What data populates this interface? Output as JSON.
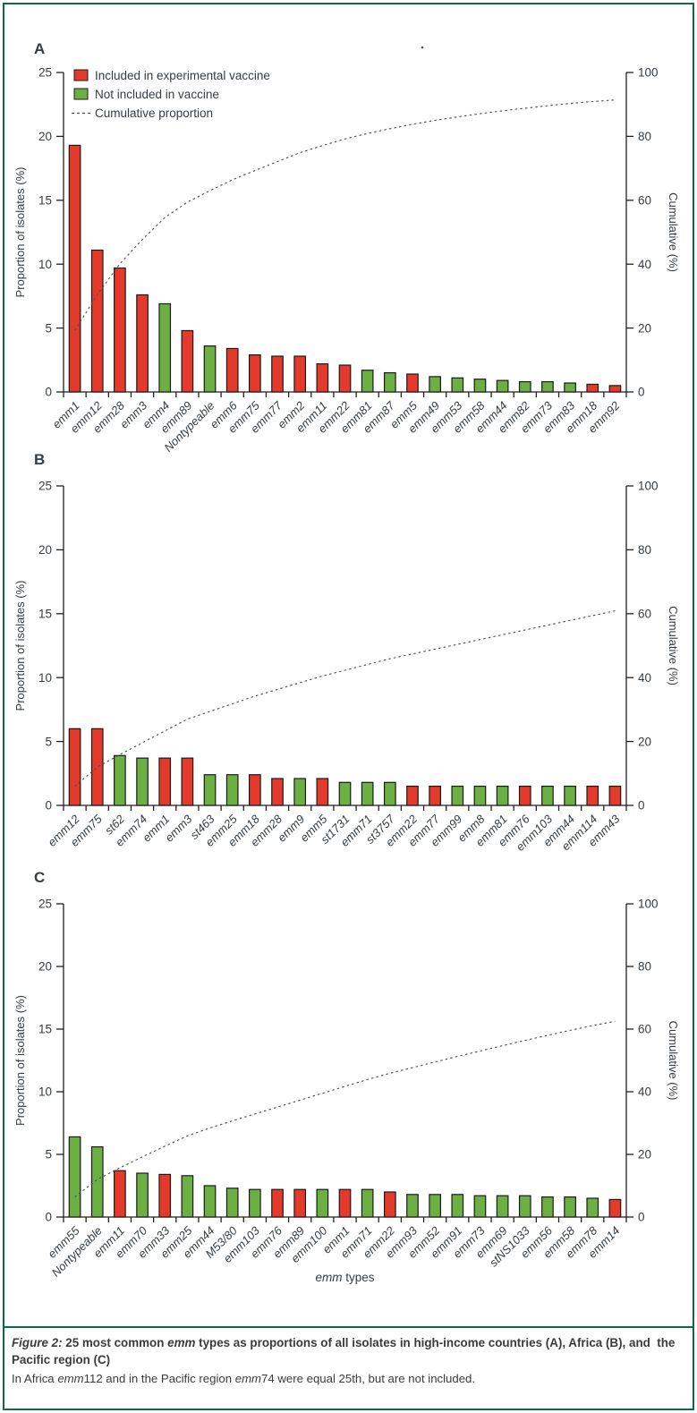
{
  "colors": {
    "included": "#e43a2c",
    "not_included": "#6cb044",
    "cumulative_line": "#4c4c4c",
    "bar_outline": "#1a1a1a",
    "axis": "#231f20",
    "frame_green": "#0c6b3f",
    "text": "#343d44"
  },
  "xlabel": {
    "italic_part": "emm",
    "rest_part": " types"
  },
  "legend": {
    "included_label": "Included in experimental vaccine",
    "not_included_label": "Not included in vaccine",
    "cumulative_label": "Cumulative proportion"
  },
  "caption": {
    "title_segments": [
      {
        "text": "Figure 2: ",
        "style": "bold-italic"
      },
      {
        "text": "25 most common ",
        "style": "bold"
      },
      {
        "text": "emm",
        "style": "bold-italic"
      },
      {
        "text": " types as proportions of all isolates in high-income countries (A), Africa (B), and  the Pacific region (C)",
        "style": "bold"
      }
    ],
    "note_segments": [
      {
        "text": "In Africa ",
        "style": "normal"
      },
      {
        "text": "emm",
        "style": "italic"
      },
      {
        "text": "112 and in the Pacific region ",
        "style": "normal"
      },
      {
        "text": "emm",
        "style": "italic"
      },
      {
        "text": "74 were equal 25th, but are not included.",
        "style": "normal"
      }
    ]
  },
  "chart_data": [
    {
      "type": "bar",
      "panel_label": "A",
      "region": "High-income countries",
      "ylabel": "Proportion of isolates (%)",
      "y2label": "Cumulative (%)",
      "ylim": [
        0,
        25
      ],
      "y2lim": [
        0,
        100
      ],
      "yticks": [
        0,
        5,
        10,
        15,
        20,
        25
      ],
      "y2ticks": [
        0,
        20,
        40,
        60,
        80,
        100
      ],
      "has_legend": true,
      "categories": [
        "emm1",
        "emm12",
        "emm28",
        "emm3",
        "emm4",
        "emm89",
        "Nontypeable",
        "emm6",
        "emm75",
        "emm77",
        "emm2",
        "emm11",
        "emm22",
        "emm81",
        "emm87",
        "emm5",
        "emm49",
        "emm53",
        "emm58",
        "emm44",
        "emm82",
        "emm73",
        "emm83",
        "emm18",
        "emm92"
      ],
      "values": [
        19.3,
        11.1,
        9.7,
        7.6,
        6.9,
        4.8,
        3.6,
        3.4,
        2.9,
        2.8,
        2.8,
        2.2,
        2.1,
        1.7,
        1.5,
        1.4,
        1.2,
        1.1,
        1.0,
        0.9,
        0.8,
        0.8,
        0.7,
        0.6,
        0.5
      ],
      "included_in_vaccine": [
        true,
        true,
        true,
        true,
        false,
        true,
        false,
        true,
        true,
        true,
        true,
        true,
        true,
        false,
        false,
        true,
        false,
        false,
        false,
        false,
        false,
        false,
        false,
        true,
        true
      ],
      "cumulative": [
        19.3,
        30.4,
        40.1,
        47.7,
        54.6,
        59.4,
        63.0,
        66.4,
        69.3,
        72.1,
        74.9,
        77.1,
        79.2,
        80.9,
        82.4,
        83.8,
        85.0,
        86.1,
        87.1,
        88.0,
        88.8,
        89.6,
        90.3,
        90.9,
        91.4
      ]
    },
    {
      "type": "bar",
      "panel_label": "B",
      "region": "Africa",
      "ylabel": "Proportion of isolates (%)",
      "y2label": "Cumulative (%)",
      "ylim": [
        0,
        25
      ],
      "y2lim": [
        0,
        100
      ],
      "yticks": [
        0,
        5,
        10,
        15,
        20,
        25
      ],
      "y2ticks": [
        0,
        20,
        40,
        60,
        80,
        100
      ],
      "has_legend": false,
      "categories": [
        "emm12",
        "emm75",
        "st62",
        "emm74",
        "emm1",
        "emm3",
        "st463",
        "emm25",
        "emm18",
        "emm28",
        "emm9",
        "emm5",
        "st1731",
        "emm71",
        "st3757",
        "emm22",
        "emm77",
        "emm99",
        "emm8",
        "emm81",
        "emm76",
        "emm103",
        "emm44",
        "emm114",
        "emm43"
      ],
      "values": [
        6.0,
        6.0,
        3.9,
        3.7,
        3.7,
        3.7,
        2.4,
        2.4,
        2.4,
        2.1,
        2.1,
        2.1,
        1.8,
        1.8,
        1.8,
        1.5,
        1.5,
        1.5,
        1.5,
        1.5,
        1.5,
        1.5,
        1.5,
        1.5,
        1.5
      ],
      "included_in_vaccine": [
        true,
        true,
        false,
        false,
        true,
        true,
        false,
        false,
        true,
        true,
        false,
        true,
        false,
        false,
        false,
        true,
        true,
        false,
        false,
        false,
        true,
        false,
        false,
        true,
        true
      ],
      "cumulative": [
        6.0,
        12.0,
        15.9,
        19.6,
        23.3,
        27.0,
        29.4,
        31.8,
        34.2,
        36.3,
        38.4,
        40.5,
        42.3,
        44.1,
        45.9,
        47.4,
        48.9,
        50.4,
        51.9,
        53.4,
        54.9,
        56.4,
        57.9,
        59.4,
        60.9
      ]
    },
    {
      "type": "bar",
      "panel_label": "C",
      "region": "Pacific region",
      "ylabel": "Proportion of isolates (%)",
      "y2label": "Cumulative (%)",
      "ylim": [
        0,
        25
      ],
      "y2lim": [
        0,
        100
      ],
      "yticks": [
        0,
        5,
        10,
        15,
        20,
        25
      ],
      "y2ticks": [
        0,
        20,
        40,
        60,
        80,
        100
      ],
      "has_legend": false,
      "categories": [
        "emm55",
        "Nontypeable",
        "emm11",
        "emm70",
        "emm33",
        "emm25",
        "emm44",
        "M53/80",
        "emm103",
        "emm76",
        "emm89",
        "emm100",
        "emm1",
        "emm71",
        "emm22",
        "emm93",
        "emm52",
        "emm91",
        "emm73",
        "emm69",
        "stNS1033",
        "emm56",
        "emm58",
        "emm78",
        "emm14"
      ],
      "values": [
        6.4,
        5.6,
        3.7,
        3.5,
        3.4,
        3.3,
        2.5,
        2.3,
        2.2,
        2.2,
        2.2,
        2.2,
        2.2,
        2.2,
        2.0,
        1.8,
        1.8,
        1.8,
        1.7,
        1.7,
        1.7,
        1.6,
        1.6,
        1.5,
        1.4
      ],
      "included_in_vaccine": [
        false,
        false,
        true,
        false,
        true,
        false,
        false,
        false,
        false,
        true,
        true,
        false,
        true,
        false,
        true,
        false,
        false,
        false,
        false,
        false,
        false,
        false,
        false,
        false,
        true
      ],
      "cumulative": [
        6.4,
        12.0,
        15.7,
        19.2,
        22.6,
        25.9,
        28.4,
        30.7,
        32.9,
        35.1,
        37.3,
        39.5,
        41.7,
        43.9,
        45.9,
        47.7,
        49.5,
        51.3,
        53.0,
        54.7,
        56.4,
        58.0,
        59.6,
        61.1,
        62.5
      ]
    }
  ]
}
